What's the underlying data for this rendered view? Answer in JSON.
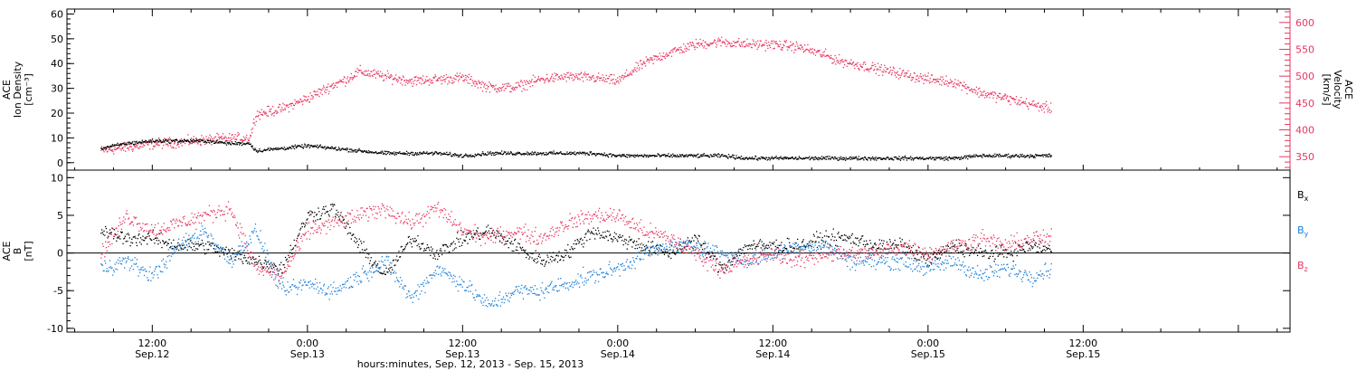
{
  "chart_data": [
    {
      "type": "scatter",
      "panel": "top",
      "ylabel_lines": [
        "ACE",
        "Ion Density",
        "[cm⁻³]"
      ],
      "y2label_lines": [
        "ACE",
        "Velocity",
        "[km/s]"
      ],
      "ylim": [
        -3,
        62
      ],
      "yticks": [
        0,
        10,
        20,
        30,
        40,
        50,
        60
      ],
      "y2lim": [
        325,
        625
      ],
      "y2ticks": [
        350,
        400,
        450,
        500,
        550,
        600
      ],
      "x_hour_range": [
        8,
        84
      ],
      "series": [
        {
          "name": "",
          "axis": "left",
          "color": "#000000",
          "points": [
            [
              8,
              6
            ],
            [
              10,
              8
            ],
            [
              12,
              9
            ],
            [
              14,
              9
            ],
            [
              16,
              9
            ],
            [
              18,
              8
            ],
            [
              19.5,
              8
            ],
            [
              20,
              5
            ],
            [
              22,
              6
            ],
            [
              24,
              7
            ],
            [
              26,
              6
            ],
            [
              28,
              5
            ],
            [
              30,
              4
            ],
            [
              32,
              4
            ],
            [
              34,
              4
            ],
            [
              36,
              3
            ],
            [
              38,
              4
            ],
            [
              40,
              4
            ],
            [
              42,
              4
            ],
            [
              44,
              4
            ],
            [
              46,
              4
            ],
            [
              48,
              3
            ],
            [
              50,
              3
            ],
            [
              52,
              3
            ],
            [
              54,
              3
            ],
            [
              56,
              3
            ],
            [
              58,
              2
            ],
            [
              60,
              2
            ],
            [
              62,
              2
            ],
            [
              64,
              2
            ],
            [
              66,
              2
            ],
            [
              68,
              2
            ],
            [
              70,
              2
            ],
            [
              72,
              2
            ],
            [
              74,
              2
            ],
            [
              76,
              3
            ],
            [
              78,
              3
            ],
            [
              80,
              3
            ],
            [
              81.5,
              3
            ]
          ]
        },
        {
          "name": "",
          "axis": "right",
          "color": "#e8365f",
          "points": [
            [
              8,
              362
            ],
            [
              10,
              368
            ],
            [
              12,
              375
            ],
            [
              14,
              378
            ],
            [
              16,
              382
            ],
            [
              18,
              385
            ],
            [
              19.5,
              386
            ],
            [
              20,
              430
            ],
            [
              22,
              440
            ],
            [
              24,
              460
            ],
            [
              26,
              485
            ],
            [
              27,
              495
            ],
            [
              28,
              510
            ],
            [
              30,
              500
            ],
            [
              32,
              492
            ],
            [
              34,
              495
            ],
            [
              36,
              498
            ],
            [
              38,
              480
            ],
            [
              40,
              480
            ],
            [
              42,
              495
            ],
            [
              44,
              500
            ],
            [
              46,
              498
            ],
            [
              48,
              492
            ],
            [
              50,
              525
            ],
            [
              52,
              545
            ],
            [
              54,
              560
            ],
            [
              56,
              565
            ],
            [
              58,
              560
            ],
            [
              60,
              560
            ],
            [
              62,
              555
            ],
            [
              64,
              540
            ],
            [
              65,
              530
            ],
            [
              66,
              525
            ],
            [
              68,
              515
            ],
            [
              70,
              505
            ],
            [
              72,
              495
            ],
            [
              74,
              490
            ],
            [
              76,
              470
            ],
            [
              78,
              460
            ],
            [
              80,
              448
            ],
            [
              81.5,
              440
            ]
          ]
        }
      ]
    },
    {
      "type": "scatter",
      "panel": "bottom",
      "ylabel_lines": [
        "ACE",
        "B",
        "[nT]"
      ],
      "ylim": [
        -10.5,
        11
      ],
      "yticks": [
        -10,
        -5,
        0,
        5,
        10
      ],
      "x_hour_range": [
        8,
        84
      ],
      "legend": "right",
      "series": [
        {
          "name": "Bx",
          "label_main": "B",
          "label_sub": "x",
          "color": "#000000",
          "points": [
            [
              8,
              3
            ],
            [
              10,
              2
            ],
            [
              12,
              2
            ],
            [
              14,
              1
            ],
            [
              16,
              1
            ],
            [
              18,
              0
            ],
            [
              20,
              -1
            ],
            [
              22,
              -2
            ],
            [
              24,
              5
            ],
            [
              26,
              6
            ],
            [
              28,
              1
            ],
            [
              30,
              -3
            ],
            [
              32,
              2
            ],
            [
              34,
              0
            ],
            [
              36,
              2
            ],
            [
              38,
              3
            ],
            [
              40,
              1
            ],
            [
              42,
              -1
            ],
            [
              44,
              0
            ],
            [
              46,
              3
            ],
            [
              48,
              2
            ],
            [
              50,
              1
            ],
            [
              52,
              0
            ],
            [
              54,
              2
            ],
            [
              56,
              -2
            ],
            [
              58,
              1
            ],
            [
              60,
              1
            ],
            [
              62,
              1
            ],
            [
              64,
              2
            ],
            [
              66,
              2
            ],
            [
              68,
              1
            ],
            [
              70,
              1
            ],
            [
              72,
              -1
            ],
            [
              74,
              1
            ],
            [
              76,
              0
            ],
            [
              78,
              0
            ],
            [
              80,
              1
            ],
            [
              81.5,
              0.5
            ]
          ]
        },
        {
          "name": "By",
          "label_main": "B",
          "label_sub": "y",
          "color": "#1a7fd9",
          "points": [
            [
              8,
              -2
            ],
            [
              10,
              -1
            ],
            [
              12,
              -3
            ],
            [
              14,
              1
            ],
            [
              16,
              3
            ],
            [
              18,
              -1
            ],
            [
              20,
              3
            ],
            [
              22,
              -5
            ],
            [
              24,
              -4
            ],
            [
              26,
              -5
            ],
            [
              28,
              -3
            ],
            [
              30,
              -1
            ],
            [
              32,
              -6
            ],
            [
              34,
              -2
            ],
            [
              36,
              -4
            ],
            [
              38,
              -7
            ],
            [
              40,
              -5
            ],
            [
              42,
              -5
            ],
            [
              44,
              -4
            ],
            [
              46,
              -3
            ],
            [
              48,
              -2
            ],
            [
              50,
              0
            ],
            [
              52,
              1
            ],
            [
              54,
              1
            ],
            [
              56,
              0
            ],
            [
              58,
              -1
            ],
            [
              60,
              0
            ],
            [
              62,
              1
            ],
            [
              64,
              1
            ],
            [
              66,
              -1
            ],
            [
              68,
              -1
            ],
            [
              70,
              -1
            ],
            [
              72,
              -2
            ],
            [
              74,
              -1
            ],
            [
              76,
              -3
            ],
            [
              78,
              -2
            ],
            [
              80,
              -3
            ],
            [
              81.5,
              -2
            ]
          ]
        },
        {
          "name": "Bz",
          "label_main": "B",
          "label_sub": "z",
          "color": "#e8365f",
          "points": [
            [
              8,
              0
            ],
            [
              10,
              5
            ],
            [
              12,
              3
            ],
            [
              14,
              4
            ],
            [
              16,
              5
            ],
            [
              18,
              6
            ],
            [
              20,
              -2
            ],
            [
              22,
              -3
            ],
            [
              24,
              3
            ],
            [
              26,
              4
            ],
            [
              28,
              5
            ],
            [
              30,
              6
            ],
            [
              32,
              4
            ],
            [
              34,
              6
            ],
            [
              36,
              3
            ],
            [
              38,
              2
            ],
            [
              40,
              3
            ],
            [
              42,
              2
            ],
            [
              44,
              4
            ],
            [
              46,
              5
            ],
            [
              48,
              5
            ],
            [
              50,
              3
            ],
            [
              52,
              2
            ],
            [
              54,
              0
            ],
            [
              56,
              -2
            ],
            [
              58,
              -1
            ],
            [
              60,
              0
            ],
            [
              62,
              -1
            ],
            [
              64,
              0
            ],
            [
              66,
              0
            ],
            [
              68,
              0
            ],
            [
              70,
              1
            ],
            [
              72,
              0
            ],
            [
              74,
              1
            ],
            [
              76,
              2
            ],
            [
              78,
              1
            ],
            [
              80,
              2
            ],
            [
              81.5,
              2
            ]
          ]
        }
      ]
    }
  ],
  "x_axis": {
    "ticks": [
      {
        "hour": 12,
        "time": "12:00",
        "date": "Sep.12"
      },
      {
        "hour": 24,
        "time": "0:00",
        "date": "Sep.13"
      },
      {
        "hour": 36,
        "time": "12:00",
        "date": "Sep.13"
      },
      {
        "hour": 48,
        "time": "0:00",
        "date": "Sep.14"
      },
      {
        "hour": 60,
        "time": "12:00",
        "date": "Sep.14"
      },
      {
        "hour": 72,
        "time": "0:00",
        "date": "Sep.15"
      },
      {
        "hour": 84,
        "time": "12:00",
        "date": "Sep.15"
      }
    ],
    "title": "hours:minutes, Sep. 12, 2013 - Sep. 15, 2013"
  }
}
